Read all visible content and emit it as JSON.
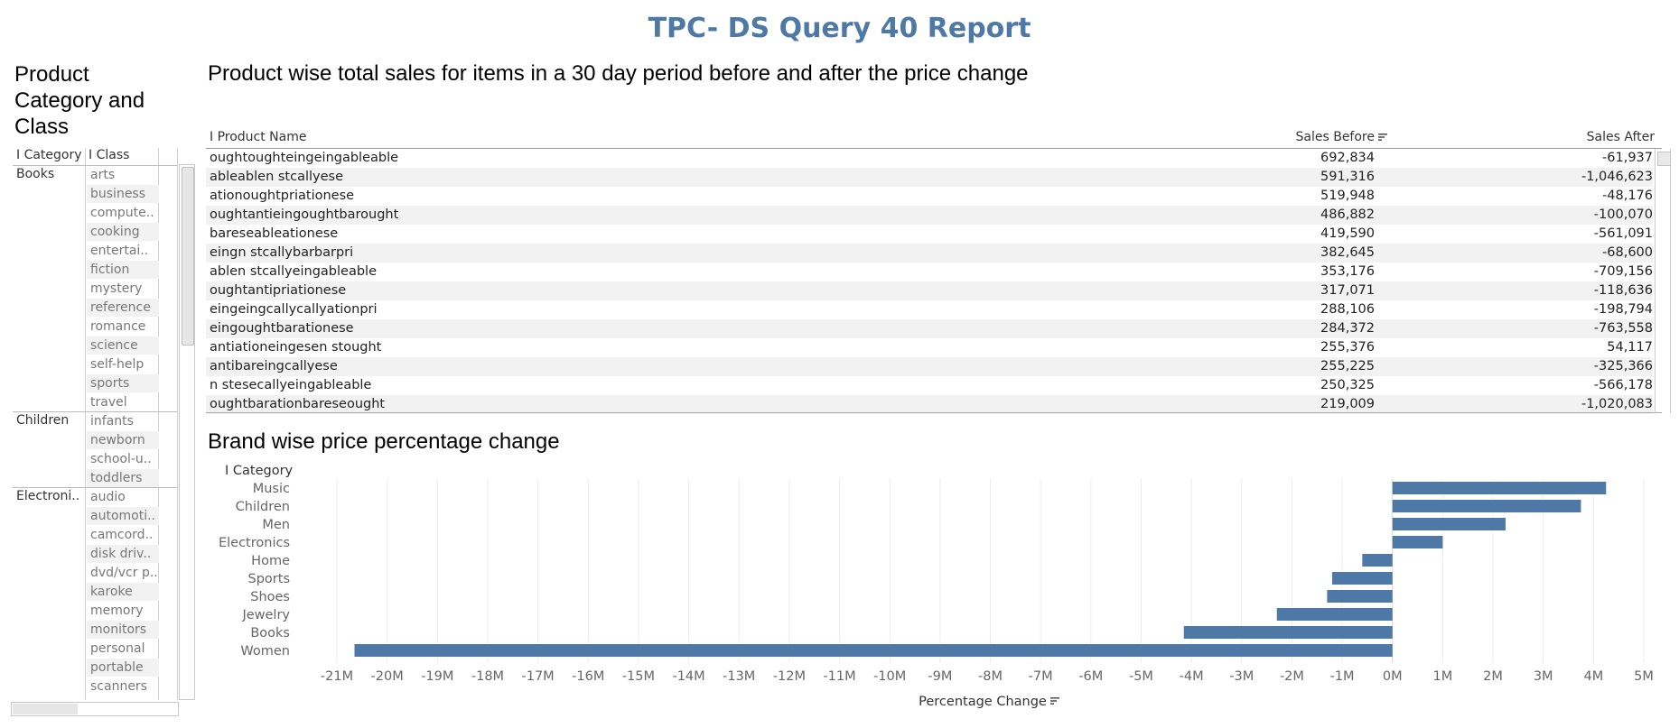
{
  "report_title": "TPC- DS Query 40 Report",
  "left_panel": {
    "title": "Product Category and Class",
    "col_headers": {
      "category": "I Category",
      "class": "I Class"
    },
    "groups": [
      {
        "category": "Books",
        "classes": [
          "arts",
          "business",
          "compute..",
          "cooking",
          "entertai..",
          "fiction",
          "mystery",
          "reference",
          "romance",
          "science",
          "self-help",
          "sports",
          "travel"
        ]
      },
      {
        "category": "Children",
        "classes": [
          "infants",
          "newborn",
          "school-u..",
          "toddlers"
        ]
      },
      {
        "category": "Electroni..",
        "classes": [
          "audio",
          "automoti..",
          "camcord..",
          "disk driv..",
          "dvd/vcr p..",
          "karoke",
          "memory",
          "monitors",
          "personal",
          "portable",
          "scanners"
        ]
      }
    ]
  },
  "table": {
    "title": "Product wise total sales for items in a 30 day period before and after the price change",
    "columns": {
      "name": "I Product Name",
      "before": "Sales Before",
      "after": "Sales After"
    },
    "rows": [
      {
        "name": "oughtoughteingeingableable",
        "before": "692,834",
        "after": "-61,937"
      },
      {
        "name": "ableablen stcallyese",
        "before": "591,316",
        "after": "-1,046,623"
      },
      {
        "name": "ationoughtpriationese",
        "before": "519,948",
        "after": "-48,176"
      },
      {
        "name": "oughtantieingoughtbarought",
        "before": "486,882",
        "after": "-100,070"
      },
      {
        "name": "bareseableationese",
        "before": "419,590",
        "after": "-561,091"
      },
      {
        "name": "eingn stcallybarbarpri",
        "before": "382,645",
        "after": "-68,600"
      },
      {
        "name": "ablen stcallyeingableable",
        "before": "353,176",
        "after": "-709,156"
      },
      {
        "name": "oughtantipriationese",
        "before": "317,071",
        "after": "-118,636"
      },
      {
        "name": "eingeingcallycallyationpri",
        "before": "288,106",
        "after": "-198,794"
      },
      {
        "name": "eingoughtbarationese",
        "before": "284,372",
        "after": "-763,558"
      },
      {
        "name": "antiationeingesen stought",
        "before": "255,376",
        "after": "54,117"
      },
      {
        "name": "antibareingcallyese",
        "before": "255,225",
        "after": "-325,366"
      },
      {
        "name": "n stesecallyeingableable",
        "before": "250,325",
        "after": "-566,178"
      },
      {
        "name": "oughtbarationbareseought",
        "before": "219,009",
        "after": "-1,020,083"
      }
    ]
  },
  "chart_title": "Brand wise price percentage change",
  "chart_data": {
    "type": "bar",
    "orientation": "horizontal",
    "ylabel": "I Category",
    "xlabel": "Percentage Change",
    "categories": [
      "Music",
      "Children",
      "Men",
      "Electronics",
      "Home",
      "Sports",
      "Shoes",
      "Jewelry",
      "Books",
      "Women"
    ],
    "values": [
      4250000,
      3750000,
      2250000,
      1000000,
      -600000,
      -1200000,
      -1300000,
      -2300000,
      -4150000,
      -20650000
    ],
    "xlim": [
      -21000000,
      5000000
    ],
    "ticks": [
      -21,
      -20,
      -19,
      -18,
      -17,
      -16,
      -15,
      -14,
      -13,
      -12,
      -11,
      -10,
      -9,
      -8,
      -7,
      -6,
      -5,
      -4,
      -3,
      -2,
      -1,
      0,
      1,
      2,
      3,
      4,
      5
    ],
    "tick_labels": [
      "-21M",
      "-20M",
      "-19M",
      "-18M",
      "-17M",
      "-16M",
      "-15M",
      "-14M",
      "-13M",
      "-12M",
      "-11M",
      "-10M",
      "-9M",
      "-8M",
      "-7M",
      "-6M",
      "-5M",
      "-4M",
      "-3M",
      "-2M",
      "-1M",
      "0M",
      "1M",
      "2M",
      "3M",
      "4M",
      "5M"
    ],
    "bar_color": "#4e79a7",
    "grid": true
  }
}
